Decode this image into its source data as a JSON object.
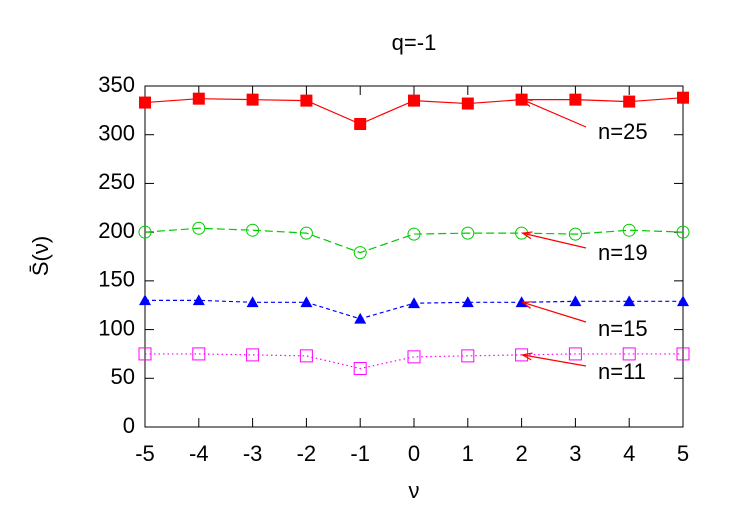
{
  "chart_data": {
    "type": "line",
    "title": "q=-1",
    "x_label": "ν",
    "y_label": "S̄(ν)",
    "x": [
      -5,
      -4,
      -3,
      -2,
      -1,
      0,
      1,
      2,
      3,
      4,
      5
    ],
    "xlim": [
      -5,
      5
    ],
    "xticks": [
      -5,
      -4,
      -3,
      -2,
      -1,
      0,
      1,
      2,
      3,
      4,
      5
    ],
    "ylim": [
      0,
      350
    ],
    "yticks": [
      0,
      50,
      100,
      150,
      200,
      250,
      300,
      350
    ],
    "series": [
      {
        "name": "n=25",
        "color": "#ff0000",
        "marker": "filled-square",
        "dash": "solid",
        "values": [
          333,
          337,
          336,
          335,
          311,
          335,
          332,
          336,
          336,
          334,
          338
        ]
      },
      {
        "name": "n=19",
        "color": "#00cc00",
        "marker": "open-circle",
        "dash": "dashed",
        "values": [
          200,
          204,
          202,
          199,
          179,
          198,
          199,
          199,
          198,
          202,
          200
        ]
      },
      {
        "name": "n=15",
        "color": "#0000ff",
        "marker": "filled-triangle",
        "dash": "short-dashed",
        "values": [
          130,
          130,
          128,
          128,
          111,
          127,
          128,
          128,
          129,
          129,
          129
        ]
      },
      {
        "name": "n=11",
        "color": "#ff00ff",
        "marker": "open-square",
        "dash": "dotted",
        "values": [
          75,
          75,
          74,
          73,
          60,
          72,
          73,
          74,
          75,
          75,
          75
        ]
      }
    ]
  }
}
